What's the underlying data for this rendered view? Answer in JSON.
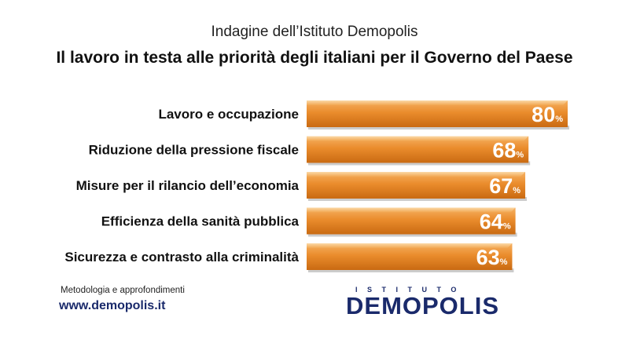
{
  "header": {
    "supertitle": "Indagine dell’Istituto Demopolis",
    "title": "Il lavoro in testa alle priorità degli italiani per il Governo del Paese"
  },
  "chart_data": {
    "type": "bar",
    "orientation": "horizontal",
    "categories": [
      "Lavoro e occupazione",
      "Riduzione della pressione fiscale",
      "Misure per il rilancio dell’economia",
      "Efficienza della sanità pubblica",
      "Sicurezza e contrasto alla criminalità"
    ],
    "values": [
      80,
      68,
      67,
      64,
      63
    ],
    "value_suffix": "%",
    "xlim": [
      0,
      100
    ],
    "grid": false,
    "bar_color": "#e8892a"
  },
  "footer": {
    "methodology": "Metodologia e approfondimenti",
    "url": "www.demopolis.it"
  },
  "logo": {
    "top_text": "ISTITUTO",
    "main_text": "DEMOPOLIS",
    "color": "#1a2a6b",
    "accent": "#f0a030"
  }
}
